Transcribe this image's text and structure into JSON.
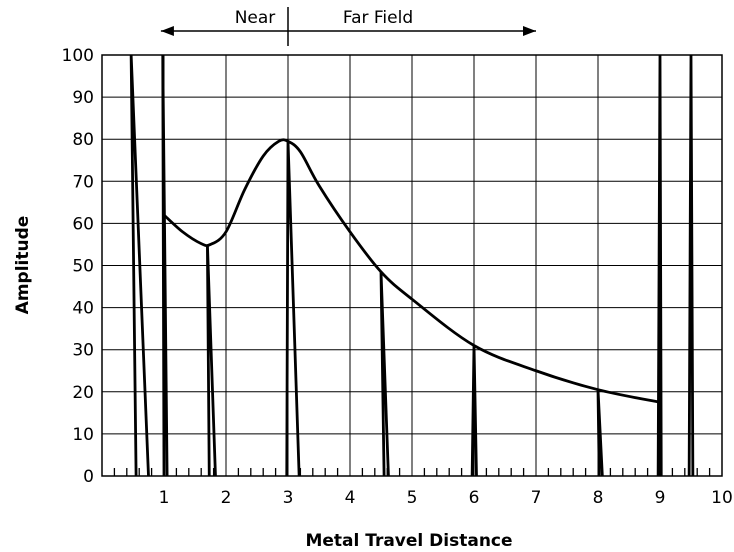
{
  "chart_data": {
    "type": "line",
    "xlabel": "Metal Travel Distance",
    "ylabel": "Amplitude",
    "xlim": [
      0,
      10
    ],
    "ylim": [
      0,
      100
    ],
    "x_ticks": [
      "1",
      "2",
      "3",
      "4",
      "5",
      "6",
      "7",
      "8",
      "9",
      "10"
    ],
    "y_ticks": [
      "0",
      "10",
      "20",
      "30",
      "40",
      "50",
      "60",
      "70",
      "80",
      "90",
      "100"
    ],
    "grid": true,
    "annotations": {
      "near_label": "Near",
      "far_label": "Far Field",
      "boundary_x": 3,
      "arrow_from_x": 0.95,
      "arrow_to_x": 7.0
    },
    "series": [
      {
        "type": "curve",
        "x": [
          1.0,
          1.3,
          1.6,
          1.75,
          2.0,
          2.3,
          2.6,
          2.85,
          3.0,
          3.2,
          3.5,
          4.0,
          4.5,
          5.0,
          6.0,
          7.0,
          8.0,
          9.0
        ],
        "y": [
          62,
          58,
          55.2,
          55,
          58,
          68,
          76,
          79.5,
          79.5,
          77,
          69,
          58,
          48.5,
          42,
          31,
          25,
          20.5,
          17.5
        ]
      },
      {
        "type": "spikes",
        "items": [
          {
            "base": [
              0.55,
              0.75
            ],
            "top_x": 0.47,
            "top_y": 100
          },
          {
            "base": [
              1.0,
              1.05
            ],
            "top_x": 0.98,
            "top_y": 100
          },
          {
            "base": [
              1.73,
              1.83
            ],
            "top_x": 1.7,
            "top_y": 55
          },
          {
            "base": [
              2.98,
              3.18
            ],
            "top_x": 3.0,
            "top_y": 79.5
          },
          {
            "base": [
              4.55,
              4.62
            ],
            "top_x": 4.5,
            "top_y": 48.5
          },
          {
            "base": [
              5.97,
              6.04
            ],
            "top_x": 6.0,
            "top_y": 31
          },
          {
            "base": [
              8.02,
              8.07
            ],
            "top_x": 8.0,
            "top_y": 20.5
          },
          {
            "base": [
              8.97,
              9.02
            ],
            "top_x": 9.0,
            "top_y": 100
          },
          {
            "base": [
              9.47,
              9.53
            ],
            "top_x": 9.5,
            "top_y": 100
          }
        ]
      }
    ]
  }
}
